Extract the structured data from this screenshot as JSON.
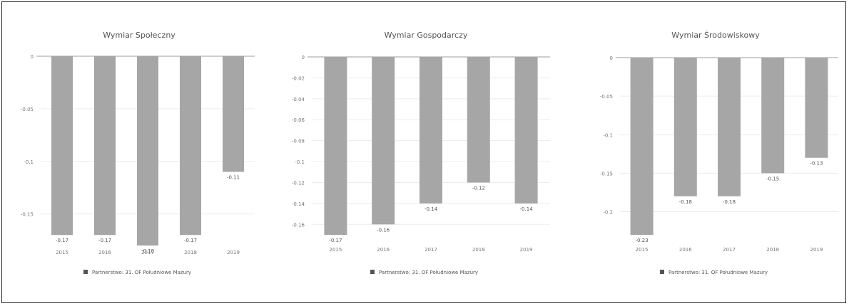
{
  "colors": {
    "bar": "#a6a6a6",
    "grid": "#ececec",
    "axis": "#bdbdbd",
    "frame": "#222222"
  },
  "charts": [
    {
      "id": "spoleczny",
      "chart_data": {
        "type": "bar",
        "title": "Wymiar Społeczny",
        "categories": [
          "2015",
          "2016",
          "2017",
          "2018",
          "2019"
        ],
        "series": [
          {
            "name": "Partnerstwo: 31. OF Południowe Mazury",
            "values": [
              -0.17,
              -0.17,
              -0.18,
              -0.17,
              -0.11
            ]
          }
        ],
        "data_labels": [
          "-0.17",
          "-0.17",
          "-0.18",
          "-0.17",
          "-0.11"
        ],
        "y_ticks": [
          0,
          -0.05,
          -0.1,
          -0.15
        ],
        "y_tick_labels": [
          "0",
          "-0.05",
          "-0.1",
          "-0.15"
        ],
        "ylim": [
          -0.18,
          0
        ],
        "legend_position": "bottom",
        "grid": true
      }
    },
    {
      "id": "gospodarczy",
      "chart_data": {
        "type": "bar",
        "title": "Wymiar Gospodarczy",
        "categories": [
          "2015",
          "2016",
          "2017",
          "2018",
          "2019"
        ],
        "series": [
          {
            "name": "Partnerstwo: 31. OF Południowe Mazury",
            "values": [
              -0.17,
              -0.16,
              -0.14,
              -0.12,
              -0.14
            ]
          }
        ],
        "data_labels": [
          "-0.17",
          "-0.16",
          "-0.14",
          "-0.12",
          "-0.14"
        ],
        "y_ticks": [
          0,
          -0.02,
          -0.04,
          -0.06,
          -0.08,
          -0.1,
          -0.12,
          -0.14,
          -0.16
        ],
        "y_tick_labels": [
          "0",
          "-0.02",
          "-0.04",
          "-0.06",
          "-0.08",
          "-0.1",
          "-0.12",
          "-0.14",
          "-0.16"
        ],
        "ylim": [
          -0.17,
          0
        ],
        "legend_position": "bottom",
        "grid": true
      }
    },
    {
      "id": "srodowiskowy",
      "chart_data": {
        "type": "bar",
        "title": "Wymiar Środowiskowy",
        "categories": [
          "2015",
          "2016",
          "2017",
          "2018",
          "2019"
        ],
        "series": [
          {
            "name": "Partnerstwo: 31. OF Południowe Mazury",
            "values": [
              -0.23,
              -0.18,
              -0.18,
              -0.15,
              -0.13
            ]
          }
        ],
        "data_labels": [
          "-0.23",
          "-0.18",
          "-0.18",
          "-0.15",
          "-0.13"
        ],
        "y_ticks": [
          0,
          -0.05,
          -0.1,
          -0.15,
          -0.2
        ],
        "y_tick_labels": [
          "0",
          "-0.05",
          "-0.1",
          "-0.15",
          "-0.2"
        ],
        "ylim": [
          -0.23,
          0
        ],
        "legend_position": "bottom",
        "grid": true
      }
    }
  ]
}
